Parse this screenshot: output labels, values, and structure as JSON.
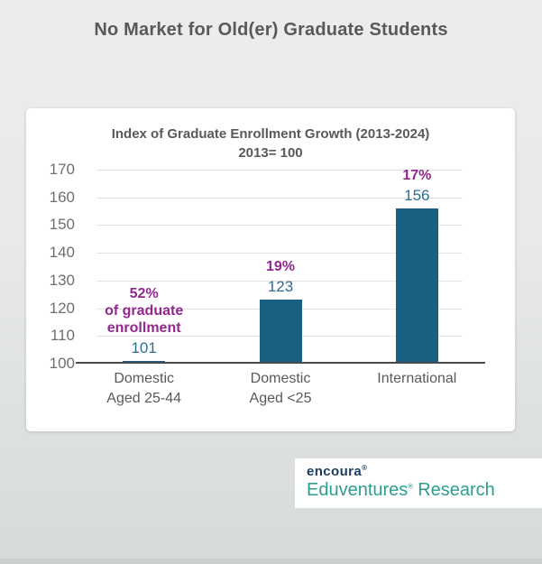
{
  "page": {
    "title": "No Market for Old(er) Graduate Students"
  },
  "chart_data": {
    "type": "bar",
    "title": "Index of Graduate Enrollment Growth (2013-2024)",
    "subtitle": "2013= 100",
    "categories": [
      [
        "Domestic",
        "Aged 25-44"
      ],
      [
        "Domestic",
        "Aged <25"
      ],
      [
        "International"
      ]
    ],
    "values": [
      101,
      123,
      156
    ],
    "value_labels": [
      "101",
      "123",
      "156"
    ],
    "annotations": [
      [
        "52%",
        "of graduate",
        "enrollment"
      ],
      [
        "19%"
      ],
      [
        "17%"
      ]
    ],
    "ylim": [
      100,
      170
    ],
    "yticks": [
      100,
      110,
      120,
      130,
      140,
      150,
      160,
      170
    ],
    "grid": true,
    "legend": false,
    "xlabel": "",
    "ylabel": "",
    "bar_color": "#195f7f",
    "value_color": "#2c6e92",
    "annotation_color": "#92278f",
    "axis_color": "#4a4a4c"
  },
  "branding": {
    "company": "encoura",
    "company_mark": "®",
    "product": "Eduventures",
    "product_mark": "®",
    "suffix": "Research",
    "company_color": "#1b3d5f",
    "product_color": "#2e9e8f"
  }
}
